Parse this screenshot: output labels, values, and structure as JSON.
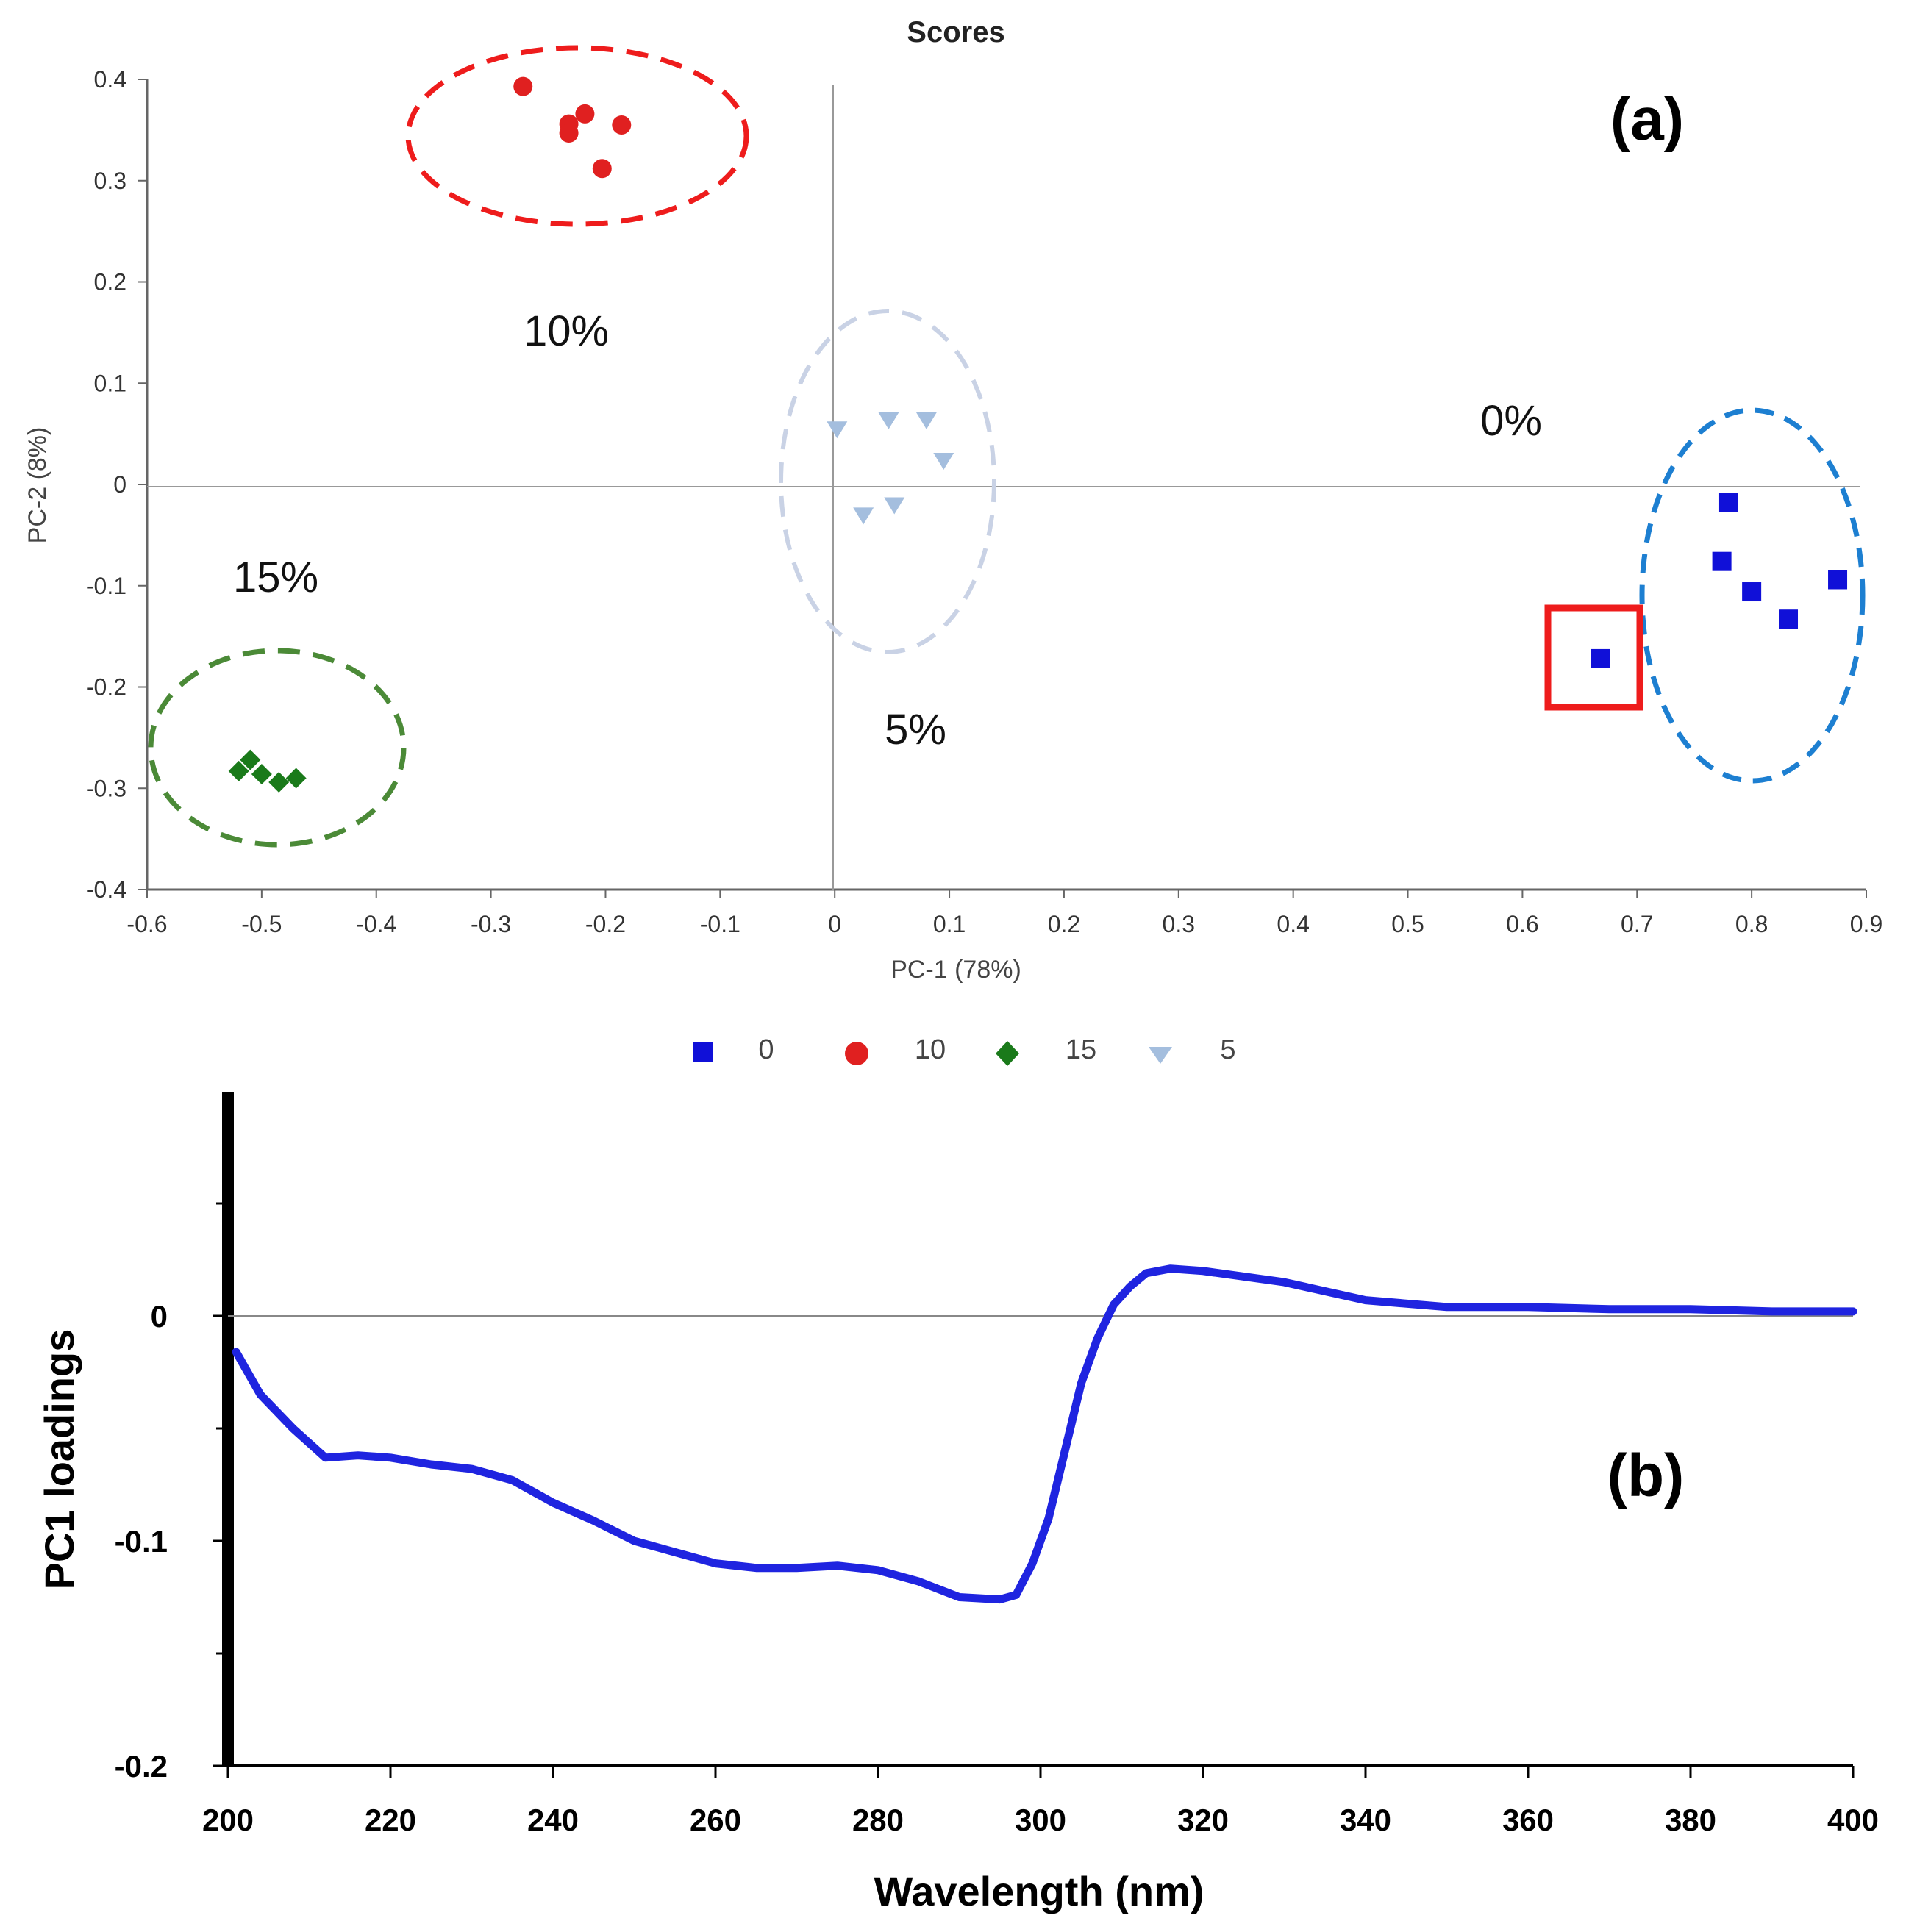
{
  "chart_data": [
    {
      "type": "scatter",
      "panel_label": "(a)",
      "title": "Scores",
      "xlabel": "PC-1 (78%)",
      "ylabel": "PC-2 (8%)",
      "xlim": [
        -0.6,
        0.9
      ],
      "ylim": [
        -0.4,
        0.4
      ],
      "xticks": [
        "-0.6",
        "-0.5",
        "-0.4",
        "-0.3",
        "-0.2",
        "-0.1",
        "0",
        "0.1",
        "0.2",
        "0.3",
        "0.4",
        "0.5",
        "0.6",
        "0.7",
        "0.8",
        "0.9"
      ],
      "yticks": [
        "0.4",
        "0.3",
        "0.2",
        "0.1",
        "0",
        "-0.1",
        "-0.2",
        "-0.3",
        "-0.4"
      ],
      "series": [
        {
          "name": "0",
          "color": "#1010d8",
          "marker": "square",
          "points": [
            [
              0.78,
              -0.018
            ],
            [
              0.774,
              -0.076
            ],
            [
              0.8,
              -0.106
            ],
            [
              0.832,
              -0.133
            ],
            [
              0.875,
              -0.094
            ],
            [
              0.668,
              -0.172
            ]
          ]
        },
        {
          "name": "10",
          "color": "#e02020",
          "marker": "circle",
          "points": [
            [
              -0.272,
              0.393
            ],
            [
              -0.232,
              0.356
            ],
            [
              -0.232,
              0.347
            ],
            [
              -0.218,
              0.366
            ],
            [
              -0.186,
              0.355
            ],
            [
              -0.203,
              0.312
            ]
          ]
        },
        {
          "name": "15",
          "color": "#1a7a1a",
          "marker": "diamond",
          "points": [
            [
              -0.52,
              -0.283
            ],
            [
              -0.51,
              -0.272
            ],
            [
              -0.5,
              -0.286
            ],
            [
              -0.485,
              -0.294
            ],
            [
              -0.47,
              -0.29
            ]
          ]
        },
        {
          "name": "5",
          "color": "#a4bede",
          "marker": "triangle-down",
          "points": [
            [
              0.002,
              0.055
            ],
            [
              0.047,
              0.064
            ],
            [
              0.08,
              0.064
            ],
            [
              0.095,
              0.024
            ],
            [
              0.025,
              -0.03
            ],
            [
              0.052,
              -0.02
            ]
          ]
        }
      ],
      "annotations": [
        "10%",
        "5%",
        "0%",
        "15%"
      ],
      "highlighted_point": [
        0.668,
        -0.172
      ]
    },
    {
      "type": "line",
      "panel_label": "(b)",
      "xlabel": "Wavelength (nm)",
      "ylabel": "PC1 loadings",
      "xlim": [
        200,
        400
      ],
      "ylim": [
        -0.2,
        0.1
      ],
      "xticks": [
        "200",
        "220",
        "240",
        "260",
        "280",
        "300",
        "320",
        "340",
        "360",
        "380",
        "400"
      ],
      "yticks": [
        "0",
        "-0.1",
        "-0.2"
      ],
      "series": [
        {
          "name": "PC1",
          "color": "#1f24e0",
          "x": [
            201,
            204,
            208,
            212,
            216,
            220,
            225,
            230,
            235,
            240,
            245,
            250,
            255,
            260,
            265,
            270,
            275,
            280,
            285,
            290,
            295,
            297,
            299,
            301,
            303,
            305,
            307,
            309,
            311,
            313,
            316,
            320,
            330,
            340,
            350,
            360,
            370,
            380,
            390,
            400
          ],
          "y": [
            -0.016,
            -0.035,
            -0.05,
            -0.063,
            -0.062,
            -0.063,
            -0.066,
            -0.068,
            -0.073,
            -0.083,
            -0.091,
            -0.1,
            -0.105,
            -0.11,
            -0.112,
            -0.112,
            -0.111,
            -0.113,
            -0.118,
            -0.125,
            -0.126,
            -0.124,
            -0.11,
            -0.09,
            -0.06,
            -0.03,
            -0.01,
            0.005,
            0.013,
            0.019,
            0.021,
            0.02,
            0.015,
            0.007,
            0.004,
            0.004,
            0.003,
            0.003,
            0.002,
            0.002
          ]
        }
      ]
    }
  ]
}
